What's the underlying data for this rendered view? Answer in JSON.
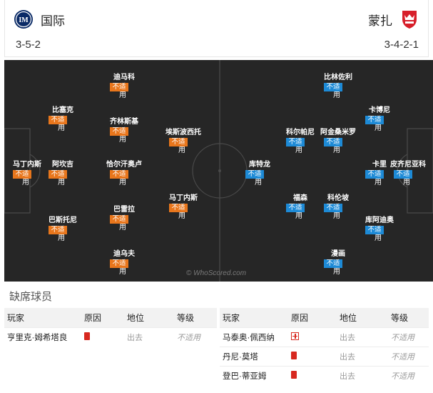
{
  "home": {
    "name": "国际",
    "formation": "3-5-2",
    "badge": "inter-badge-icon",
    "color": "#e8761c",
    "players": [
      {
        "name": "马丁内斯",
        "status": "不适",
        "extra": "用"
      },
      {
        "name": "阿坎吉",
        "status": "不适",
        "extra": "用"
      },
      {
        "name": "比塞克",
        "status": "不适",
        "extra": "用"
      },
      {
        "name": "巴斯托尼",
        "status": "不适",
        "extra": "用"
      },
      {
        "name": "迪马科",
        "status": "不适",
        "extra": "用"
      },
      {
        "name": "齐林斯基",
        "status": "不适",
        "extra": "用"
      },
      {
        "name": "恰尔汗奥卢",
        "status": "不适",
        "extra": "用"
      },
      {
        "name": "巴雷拉",
        "status": "不适",
        "extra": "用"
      },
      {
        "name": "迪乌夫",
        "status": "不适",
        "extra": "用"
      },
      {
        "name": "埃斯波西托",
        "status": "不适",
        "extra": "用"
      },
      {
        "name": "马丁内斯",
        "status": "不适",
        "extra": "用"
      }
    ]
  },
  "away": {
    "name": "蒙扎",
    "formation": "3-4-2-1",
    "badge": "monza-badge-icon",
    "color": "#1d8ad6",
    "players": [
      {
        "name": "皮齐尼亚科",
        "status": "不适",
        "extra": "用"
      },
      {
        "name": "卡里",
        "status": "不适",
        "extra": "用"
      },
      {
        "name": "卡博尼",
        "status": "不适",
        "extra": "用"
      },
      {
        "name": "库阿迪奥",
        "status": "不适",
        "extra": "用"
      },
      {
        "name": "比林佐利",
        "status": "不适",
        "extra": "用"
      },
      {
        "name": "阿金桑米罗",
        "status": "不适",
        "extra": "用"
      },
      {
        "name": "科伦坡",
        "status": "不适",
        "extra": "用"
      },
      {
        "name": "漫画",
        "status": "不适",
        "extra": "用"
      },
      {
        "name": "科尔帕尼",
        "status": "不适",
        "extra": "用"
      },
      {
        "name": "福森",
        "status": "不适",
        "extra": "用"
      },
      {
        "name": "库特龙",
        "status": "不适",
        "extra": "用"
      }
    ]
  },
  "watermark": "© WhoScored.com",
  "missing": {
    "title": "缺席球员",
    "headers": {
      "player": "玩家",
      "reason": "原因",
      "position": "地位",
      "level": "等级"
    },
    "home_rows": [
      {
        "player": "亨里克·姆希塔良",
        "reason": "red-card-icon",
        "position": "出去",
        "level": "不适用"
      }
    ],
    "away_rows": [
      {
        "player": "马泰奥·佩西纳",
        "reason": "injury-icon",
        "position": "出去",
        "level": "不适用"
      },
      {
        "player": "丹尼·莫塔",
        "reason": "red-card-icon",
        "position": "出去",
        "level": "不适用"
      },
      {
        "player": "登巴·蒂亚姆",
        "reason": "red-card-icon",
        "position": "出去",
        "level": "不适用"
      }
    ]
  }
}
